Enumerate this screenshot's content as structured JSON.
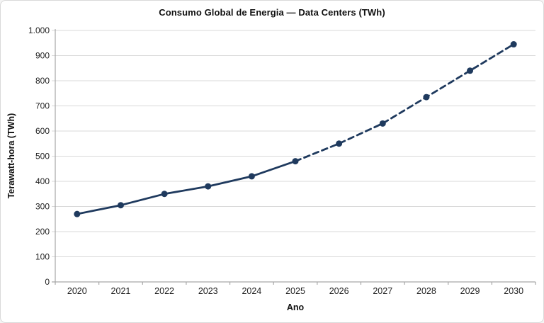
{
  "chart_data": {
    "type": "line",
    "title": "Consumo Global de Energia — Data Centers (TWh)",
    "xlabel": "Ano",
    "ylabel": "Terawatt-hora (TWh)",
    "categories": [
      "2020",
      "2021",
      "2022",
      "2023",
      "2024",
      "2025",
      "2026",
      "2027",
      "2028",
      "2029",
      "2030"
    ],
    "values": [
      270,
      305,
      350,
      380,
      420,
      480,
      550,
      630,
      735,
      840,
      945
    ],
    "solid_until_index": 5,
    "line_segments": [
      {
        "style": "solid",
        "from_index": 0,
        "to_index": 5
      },
      {
        "style": "dashed",
        "from_index": 5,
        "to_index": 10
      }
    ],
    "ylim": [
      0,
      1000
    ],
    "ytick_step": 100,
    "ytick_labels": [
      "0",
      "100",
      "200",
      "300",
      "400",
      "500",
      "600",
      "700",
      "800",
      "900",
      "1.000"
    ],
    "grid": "horizontal",
    "legend": "none",
    "marker": "circle",
    "colors": {
      "line": "#1f3a5e",
      "marker": "#1f3a5e",
      "grid": "#d9d9d9",
      "axis": "#a6a6a6",
      "tick_text": "#1f1f1f",
      "title_text": "#111111",
      "card_border": "#d9d9d9",
      "background": "#ffffff"
    }
  }
}
